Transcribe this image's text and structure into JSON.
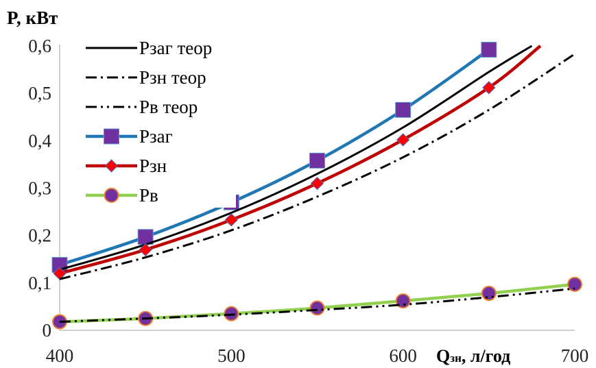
{
  "chart_data": {
    "type": "line",
    "ylabel": "P, кВт",
    "xlabel_main": "Q",
    "xlabel_sub": "зн",
    "xlabel_rest": ", л/год",
    "xlim": [
      400,
      700
    ],
    "ylim": [
      0,
      0.6
    ],
    "xticks": [
      400,
      500,
      600,
      700
    ],
    "xtick_labels": [
      "400",
      "500",
      "600",
      "700"
    ],
    "yticks": [
      0,
      0.1,
      0.2,
      0.3,
      0.4,
      0.5,
      0.6
    ],
    "ytick_labels": [
      "0",
      "0,1",
      "0,2",
      "0,3",
      "0,4",
      "0,5",
      "0,6"
    ],
    "grid": false,
    "legend_position": "top-left",
    "series": [
      {
        "name": "Рзаг теор",
        "style": "solid",
        "color": "#000000",
        "marker": "none",
        "x": [
          400,
          450,
          500,
          550,
          600,
          650,
          675
        ],
        "y": [
          0.128,
          0.181,
          0.248,
          0.33,
          0.428,
          0.545,
          0.6
        ]
      },
      {
        "name": "Рзн теор",
        "style": "dashdot",
        "color": "#000000",
        "marker": "none",
        "x": [
          400,
          450,
          500,
          550,
          600,
          650,
          700
        ],
        "y": [
          0.108,
          0.154,
          0.211,
          0.282,
          0.365,
          0.465,
          0.583
        ]
      },
      {
        "name": "Рв теор",
        "style": "dashdotdot",
        "color": "#000000",
        "marker": "none",
        "x": [
          400,
          450,
          500,
          550,
          600,
          650,
          700
        ],
        "y": [
          0.018,
          0.025,
          0.033,
          0.043,
          0.054,
          0.07,
          0.088
        ]
      },
      {
        "name": "Рзаг",
        "style": "solid",
        "color": "#1f77b4",
        "marker": "square",
        "marker_color": "#7030a0",
        "x": [
          400,
          450,
          500,
          550,
          600,
          650
        ],
        "y": [
          0.138,
          0.197,
          0.27,
          0.358,
          0.465,
          0.592
        ]
      },
      {
        "name": "Рзн",
        "style": "solid",
        "color": "#c00000",
        "marker": "diamond",
        "marker_color": "#ff0000",
        "x": [
          400,
          450,
          500,
          550,
          600,
          650,
          680
        ],
        "y": [
          0.12,
          0.17,
          0.233,
          0.31,
          0.402,
          0.512,
          0.6
        ]
      },
      {
        "name": "Рв",
        "style": "solid",
        "color": "#92d050",
        "marker": "circle",
        "marker_color": "#7030a0",
        "x": [
          400,
          450,
          500,
          550,
          600,
          650,
          700
        ],
        "y": [
          0.018,
          0.025,
          0.035,
          0.047,
          0.062,
          0.078,
          0.097
        ]
      }
    ]
  }
}
